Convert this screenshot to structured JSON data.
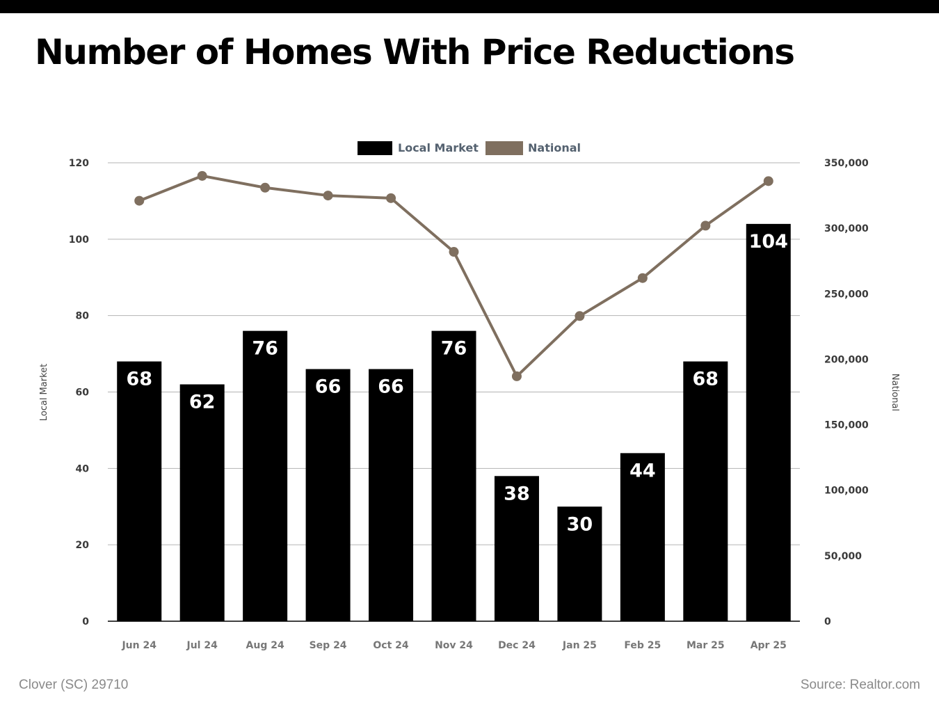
{
  "header": {
    "title": "Number of Homes With Price Reductions"
  },
  "footer": {
    "location": "Clover (SC) 29710",
    "source": "Source: Realtor.com"
  },
  "colors": {
    "local": "#000000",
    "national": "#7f6f5f",
    "grid": "#b3b3b3",
    "legend_text": "#556270",
    "axis_text": "#3a3a3a"
  },
  "chart_data": {
    "type": "bar",
    "categories": [
      "Jun 24",
      "Jul 24",
      "Aug 24",
      "Sep 24",
      "Oct 24",
      "Nov 24",
      "Dec 24",
      "Jan 25",
      "Feb 25",
      "Mar 25",
      "Apr 25"
    ],
    "series": [
      {
        "name": "Local Market",
        "type": "bar",
        "axis": "left",
        "values": [
          68,
          62,
          76,
          66,
          66,
          76,
          38,
          30,
          44,
          68,
          104
        ]
      },
      {
        "name": "National",
        "type": "line",
        "axis": "right",
        "values": [
          321000,
          340000,
          331000,
          325000,
          323000,
          282000,
          187000,
          233000,
          262000,
          302000,
          336000
        ]
      }
    ],
    "ylabel": "Local Market",
    "y2label": "National",
    "ylim": [
      0,
      120
    ],
    "y2lim": [
      0,
      350000
    ],
    "yticks": [
      "0",
      "20",
      "40",
      "60",
      "80",
      "100",
      "120"
    ],
    "y2ticks": [
      "0",
      "50,000",
      "100,000",
      "150,000",
      "200,000",
      "250,000",
      "300,000",
      "350,000"
    ],
    "grid": true,
    "legend": "top-center",
    "data_labels": true
  }
}
